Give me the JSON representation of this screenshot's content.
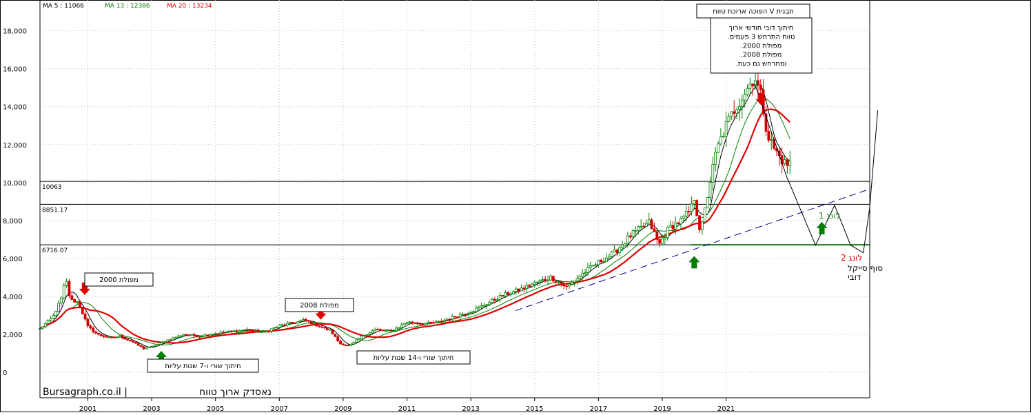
{
  "chart_data": {
    "type": "candlestick",
    "title": "נאסדק ארוך טווח",
    "watermark": "Bursagraph.co.il",
    "x_ticks": [
      "2001",
      "2003",
      "2005",
      "2007",
      "2009",
      "2011",
      "2013",
      "2015",
      "2017",
      "2019",
      "2021"
    ],
    "y_ticks": [
      "0",
      "2,000",
      "4,000",
      "6,000",
      "8,000",
      "10,000",
      "12,000",
      "14,000",
      "16,000",
      "18,000"
    ],
    "ylim": [
      0,
      20000
    ],
    "xlim": [
      1999.5,
      2025.5
    ],
    "grid": true,
    "moving_averages": [
      {
        "label": "MA 5 : 11066",
        "color": "#000000"
      },
      {
        "label": "MA 13 : 12386",
        "color": "#008000"
      },
      {
        "label": "MA 20 : 13234",
        "color": "#e00000"
      }
    ],
    "price_anchors": [
      [
        1999.5,
        2300
      ],
      [
        1999.9,
        2900
      ],
      [
        2000.2,
        4000
      ],
      [
        2000.3,
        5000
      ],
      [
        2000.45,
        3800
      ],
      [
        2000.7,
        3700
      ],
      [
        2001.0,
        2400
      ],
      [
        2001.3,
        2000
      ],
      [
        2001.7,
        1800
      ],
      [
        2002.0,
        1900
      ],
      [
        2002.4,
        1600
      ],
      [
        2002.75,
        1250
      ],
      [
        2003.0,
        1350
      ],
      [
        2003.5,
        1700
      ],
      [
        2004.0,
        2000
      ],
      [
        2004.5,
        1900
      ],
      [
        2005.0,
        2050
      ],
      [
        2006.0,
        2250
      ],
      [
        2006.5,
        2100
      ],
      [
        2007.0,
        2450
      ],
      [
        2007.8,
        2750
      ],
      [
        2008.3,
        2400
      ],
      [
        2008.6,
        2200
      ],
      [
        2008.9,
        1500
      ],
      [
        2009.2,
        1400
      ],
      [
        2009.6,
        1900
      ],
      [
        2010.0,
        2250
      ],
      [
        2010.5,
        2150
      ],
      [
        2011.0,
        2650
      ],
      [
        2011.5,
        2550
      ],
      [
        2012.0,
        2650
      ],
      [
        2012.6,
        3000
      ],
      [
        2013.0,
        3200
      ],
      [
        2013.6,
        3700
      ],
      [
        2014.0,
        4050
      ],
      [
        2014.6,
        4400
      ],
      [
        2015.0,
        4700
      ],
      [
        2015.5,
        5000
      ],
      [
        2016.0,
        4500
      ],
      [
        2016.5,
        5200
      ],
      [
        2017.0,
        5800
      ],
      [
        2017.5,
        6300
      ],
      [
        2018.0,
        7200
      ],
      [
        2018.6,
        7900
      ],
      [
        2018.9,
        6700
      ],
      [
        2019.2,
        7600
      ],
      [
        2019.6,
        8000
      ],
      [
        2019.9,
        8600
      ],
      [
        2020.0,
        9200
      ],
      [
        2020.2,
        7300
      ],
      [
        2020.5,
        10100
      ],
      [
        2020.7,
        11700
      ],
      [
        2021.0,
        13000
      ],
      [
        2021.3,
        14000
      ],
      [
        2021.6,
        14800
      ],
      [
        2021.9,
        15600
      ],
      [
        2022.1,
        14500
      ],
      [
        2022.3,
        12500
      ],
      [
        2022.5,
        11800
      ],
      [
        2022.7,
        11300
      ],
      [
        2022.9,
        10900
      ],
      [
        2023.0,
        11066
      ]
    ],
    "horizontal_lines": [
      {
        "value": 10063,
        "label": "10063",
        "color": "#000000"
      },
      {
        "value": 8851.17,
        "label": "8851.17",
        "color": "#000000"
      },
      {
        "value": 6716.07,
        "label": "6716.07",
        "color": "#000000"
      },
      {
        "value": 6716.07,
        "color": "#1a7a1a",
        "from": 2019.9,
        "to": 2025.5
      }
    ],
    "trendline": {
      "points": [
        [
          2014.4,
          3250
        ],
        [
          2025.4,
          9600
        ]
      ],
      "color": "#00008b",
      "style": "dashed"
    },
    "projection_path": [
      [
        2022.9,
        10300
      ],
      [
        2023.3,
        8700
      ],
      [
        2023.8,
        6700
      ],
      [
        2024.4,
        8800
      ],
      [
        2024.9,
        6700
      ],
      [
        2025.3,
        6300
      ],
      [
        2025.5,
        8700
      ],
      [
        2025.75,
        13800
      ]
    ],
    "arrows": [
      {
        "x": 2000.9,
        "y": 4400,
        "dir": "down",
        "color": "#e00000"
      },
      {
        "x": 2008.3,
        "y": 3100,
        "dir": "down",
        "color": "#e00000"
      },
      {
        "x": 2022.1,
        "y": 14400,
        "dir": "down",
        "color": "#e00000"
      },
      {
        "x": 2003.3,
        "y": 800,
        "dir": "up",
        "color": "#008000"
      },
      {
        "x": 2010.2,
        "y": 800,
        "dir": "up",
        "color": "#008000"
      },
      {
        "x": 2020.0,
        "y": 5800,
        "dir": "up",
        "color": "#008000"
      },
      {
        "x": 2024.0,
        "y": 7600,
        "dir": "up",
        "color": "#008000"
      }
    ],
    "annotations": [
      {
        "id": "v-pattern",
        "lines": [
          "תבנית V הפוכה ארוכת טווח"
        ],
        "boxed": true
      },
      {
        "id": "long-term-bear",
        "lines": [
          "חיתוך דובי חודשי ארוך",
          "טווח התרחש 3 פעמים.",
          "מפולת 2000.",
          "מפולת 2008.",
          "ומתרחש גם כעת."
        ],
        "boxed": true
      },
      {
        "id": "crash-2000",
        "lines": [
          "מפולת 2000"
        ],
        "boxed": true
      },
      {
        "id": "crash-2008",
        "lines": [
          "מפולת 2008"
        ],
        "boxed": true
      },
      {
        "id": "bull-7y",
        "lines": [
          "חיתוך שורי ו-7 שנות עליות"
        ],
        "boxed": true
      },
      {
        "id": "bull-14y",
        "lines": [
          "חיתוך שורי ו-14 שנות עליות"
        ],
        "boxed": true
      },
      {
        "id": "long-1",
        "lines": [
          "לונג 1"
        ],
        "color": "#1a8a1a"
      },
      {
        "id": "long-2",
        "lines": [
          "לונג 2"
        ],
        "color": "#e00000"
      },
      {
        "id": "cycle-end",
        "lines": [
          "סוף סייקל",
          "דובי"
        ],
        "color": "#000000"
      }
    ]
  }
}
